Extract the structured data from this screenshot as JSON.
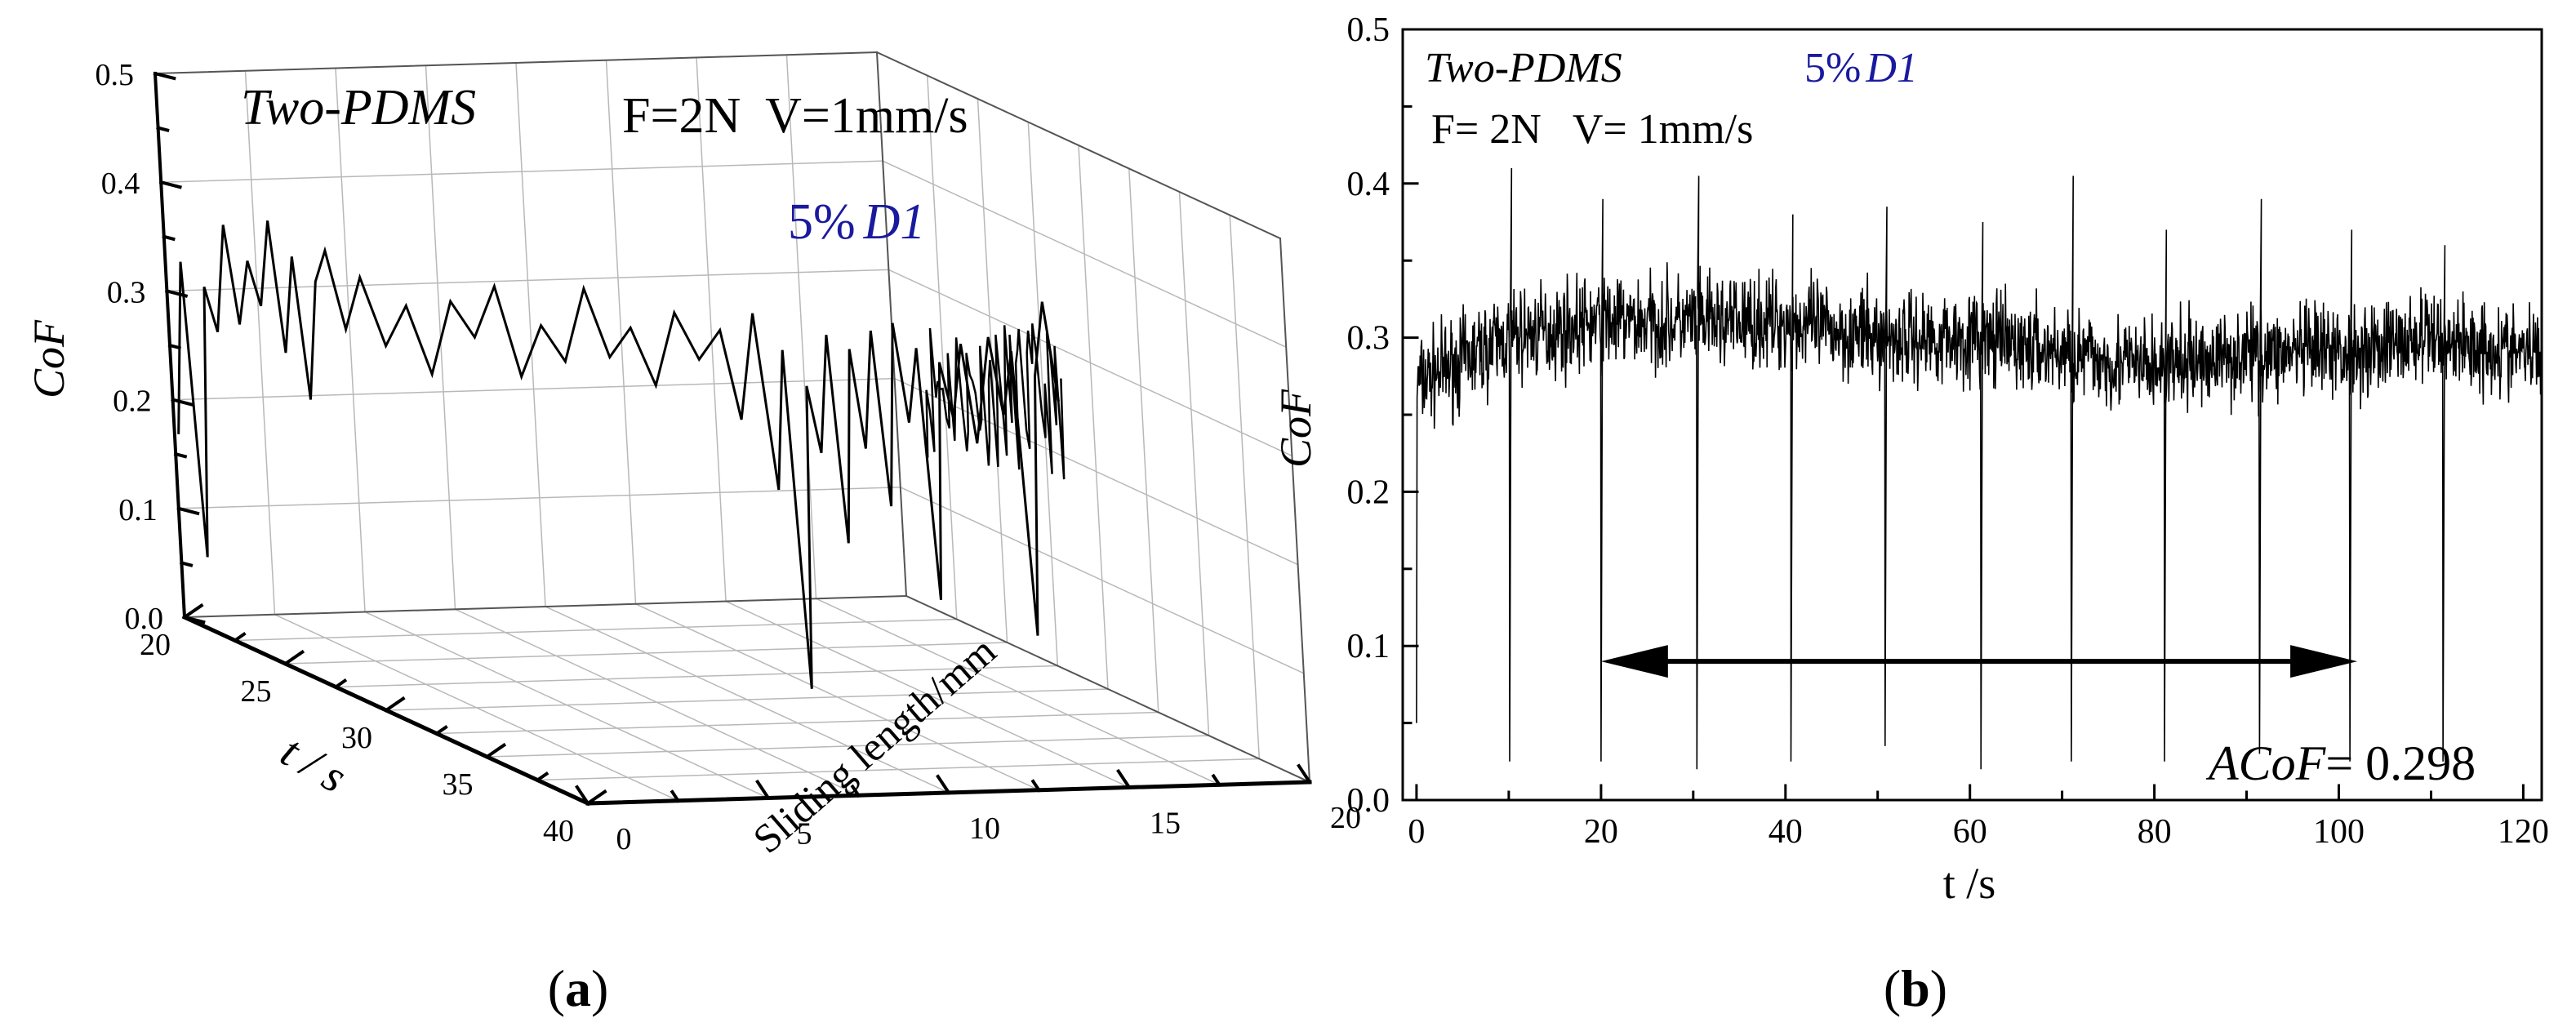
{
  "chart_data": [
    {
      "panel": "a",
      "type": "line",
      "projection": "3d",
      "panel_label": "(a)",
      "annotations": {
        "material": "Two-PDMS",
        "conditions": "F=2N  V=1mm/s",
        "sample_pct": "5%",
        "sample_name": "D1"
      },
      "zlabel": "CoF",
      "xlabel": "t / s",
      "ylabel": "Sliding length/mm",
      "zlim": [
        0,
        0.5
      ],
      "xlim": [
        20,
        40
      ],
      "ylim": [
        0,
        20
      ],
      "z_ticks": [
        "0.0",
        "0.1",
        "0.2",
        "0.3",
        "0.4",
        "0.5"
      ],
      "x_ticks": [
        "20",
        "25",
        "30",
        "35",
        "40"
      ],
      "y_ticks": [
        "0",
        "5",
        "10",
        "15",
        "20"
      ],
      "grid": true,
      "series": [
        {
          "points": [
            [
              20.2,
              0.0,
              0.17
            ],
            [
              20.4,
              0.2,
              0.33
            ],
            [
              20.6,
              0.4,
              0.06
            ],
            [
              20.8,
              0.6,
              0.31
            ],
            [
              21.0,
              0.8,
              0.27
            ],
            [
              21.2,
              1.0,
              0.37
            ],
            [
              21.4,
              1.2,
              0.28
            ],
            [
              21.6,
              1.4,
              0.34
            ],
            [
              21.8,
              1.6,
              0.3
            ],
            [
              22.0,
              1.8,
              0.38
            ],
            [
              22.2,
              2.0,
              0.26
            ],
            [
              22.4,
              2.2,
              0.35
            ],
            [
              22.6,
              2.4,
              0.22
            ],
            [
              22.8,
              2.6,
              0.33
            ],
            [
              23.0,
              2.8,
              0.36
            ],
            [
              23.3,
              3.1,
              0.29
            ],
            [
              23.6,
              3.4,
              0.34
            ],
            [
              24.0,
              3.8,
              0.28
            ],
            [
              24.4,
              4.2,
              0.32
            ],
            [
              24.8,
              4.6,
              0.26
            ],
            [
              25.2,
              5.0,
              0.33
            ],
            [
              25.6,
              5.4,
              0.3
            ],
            [
              26.0,
              5.8,
              0.35
            ],
            [
              26.4,
              6.2,
              0.27
            ],
            [
              26.8,
              6.6,
              0.32
            ],
            [
              27.2,
              7.0,
              0.29
            ],
            [
              27.6,
              7.4,
              0.36
            ],
            [
              28.0,
              7.8,
              0.3
            ],
            [
              28.4,
              8.2,
              0.33
            ],
            [
              28.8,
              8.6,
              0.28
            ],
            [
              29.2,
              9.0,
              0.35
            ],
            [
              29.6,
              9.4,
              0.31
            ],
            [
              30.0,
              9.8,
              0.34
            ],
            [
              30.3,
              10.1,
              0.26
            ],
            [
              30.6,
              10.4,
              0.36
            ],
            [
              30.9,
              10.7,
              0.2
            ],
            [
              31.1,
              10.9,
              0.33
            ],
            [
              31.3,
              11.1,
              0.02
            ],
            [
              31.5,
              11.3,
              0.3
            ],
            [
              31.7,
              11.5,
              0.24
            ],
            [
              31.9,
              11.7,
              0.35
            ],
            [
              32.1,
              11.9,
              0.16
            ],
            [
              32.3,
              12.1,
              0.34
            ],
            [
              32.5,
              12.3,
              0.25
            ],
            [
              32.7,
              12.5,
              0.36
            ],
            [
              32.9,
              12.7,
              0.2
            ],
            [
              33.1,
              12.9,
              0.37
            ],
            [
              33.3,
              13.1,
              0.28
            ],
            [
              33.5,
              13.3,
              0.35
            ],
            [
              33.7,
              13.5,
              0.12
            ],
            [
              33.9,
              13.7,
              0.34
            ],
            [
              34.1,
              13.9,
              0.29
            ],
            [
              34.3,
              14.1,
              0.36
            ],
            [
              34.5,
              14.3,
              0.27
            ],
            [
              34.8,
              14.6,
              0.37
            ],
            [
              35.0,
              14.8,
              0.3
            ],
            [
              35.2,
              15.0,
              0.36
            ],
            [
              35.4,
              15.2,
              0.1
            ],
            [
              35.6,
              15.4,
              0.34
            ],
            [
              35.8,
              15.6,
              0.41
            ],
            [
              36.0,
              15.8,
              0.32
            ]
          ]
        }
      ]
    },
    {
      "panel": "b",
      "type": "line",
      "panel_label": "(b)",
      "annotations": {
        "material": "Two-PDMS",
        "sample_pct": "5%",
        "sample_name": "D1",
        "conditions": "F= 2N   V= 1mm/s",
        "acof_label": "ACoF",
        "acof_value": "= 0.298",
        "arrow_range": [
          20,
          102
        ],
        "arrow_y": 0.09
      },
      "xlabel": "t /s",
      "ylabel": "CoF",
      "xlim": [
        -1.5,
        122
      ],
      "ylim": [
        0,
        0.5
      ],
      "x_ticks": [
        "0",
        "20",
        "40",
        "60",
        "80",
        "100",
        "120"
      ],
      "y_ticks": [
        "0.0",
        "0.1",
        "0.2",
        "0.3",
        "0.4",
        "0.5"
      ],
      "grid": false,
      "series": [
        {
          "x": [
            0,
            10,
            20,
            30,
            40,
            50,
            60,
            70,
            80,
            90,
            100,
            110,
            120
          ],
          "y": [
            0.27,
            0.3,
            0.31,
            0.31,
            0.31,
            0.3,
            0.3,
            0.29,
            0.28,
            0.29,
            0.29,
            0.3,
            0.29
          ],
          "noise_amplitude": 0.045,
          "drops": [
            {
              "x": 0.0,
              "y": 0.05
            },
            {
              "x": 10.1,
              "y": 0.025
            },
            {
              "x": 20.0,
              "y": 0.025
            },
            {
              "x": 30.4,
              "y": 0.02
            },
            {
              "x": 40.6,
              "y": 0.025
            },
            {
              "x": 50.8,
              "y": 0.035
            },
            {
              "x": 61.2,
              "y": 0.02
            },
            {
              "x": 71.0,
              "y": 0.025
            },
            {
              "x": 81.1,
              "y": 0.025
            },
            {
              "x": 91.4,
              "y": 0.03
            },
            {
              "x": 101.2,
              "y": 0.025
            },
            {
              "x": 111.3,
              "y": 0.025
            }
          ],
          "peaks": [
            {
              "x": 10.3,
              "y": 0.41
            },
            {
              "x": 20.2,
              "y": 0.39
            },
            {
              "x": 30.6,
              "y": 0.405
            },
            {
              "x": 40.8,
              "y": 0.38
            },
            {
              "x": 51.0,
              "y": 0.385
            },
            {
              "x": 61.4,
              "y": 0.375
            },
            {
              "x": 71.2,
              "y": 0.405
            },
            {
              "x": 81.3,
              "y": 0.37
            },
            {
              "x": 91.6,
              "y": 0.39
            },
            {
              "x": 101.4,
              "y": 0.37
            },
            {
              "x": 111.5,
              "y": 0.36
            }
          ]
        }
      ]
    }
  ]
}
